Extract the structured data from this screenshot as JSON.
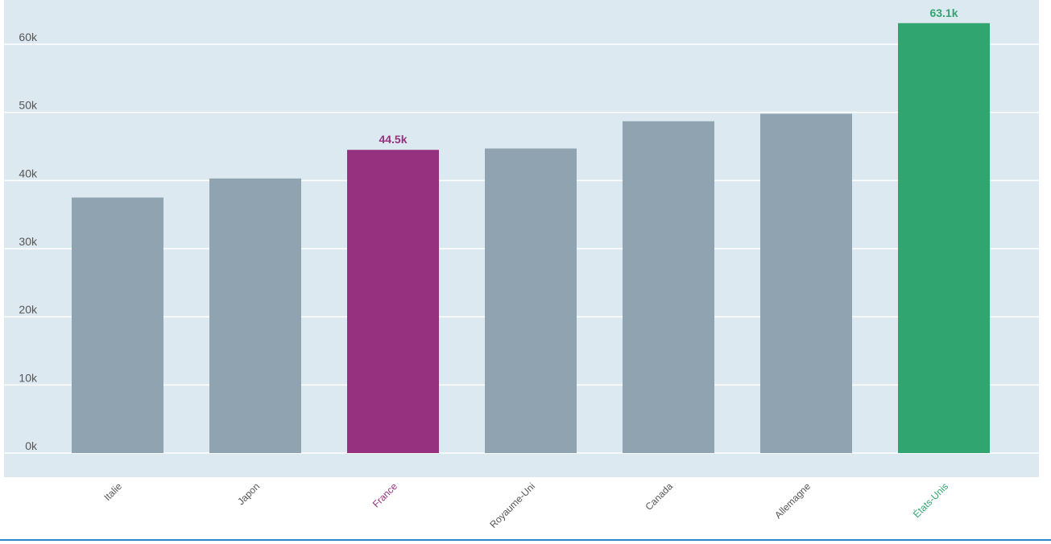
{
  "chart_data": {
    "type": "bar",
    "categories": [
      "Italie",
      "Japon",
      "France",
      "Royaume-Uni",
      "Canada",
      "Allemagne",
      "États-Unis"
    ],
    "values": [
      37.5,
      40.3,
      44.5,
      44.7,
      48.7,
      49.8,
      63.1
    ],
    "value_labels": [
      "",
      "",
      "44.5k",
      "",
      "",
      "",
      "63.1k"
    ],
    "ylim": [
      0,
      60
    ],
    "yticks": [
      0,
      10,
      20,
      30,
      40,
      50,
      60
    ],
    "ytick_labels": [
      "0k",
      "10k",
      "20k",
      "30k",
      "40k",
      "50k",
      "60k"
    ],
    "title": "",
    "xlabel": "",
    "ylabel": "",
    "grid": true,
    "colors": {
      "default": "#8fa4b0",
      "France": "#95317f",
      "États-Unis": "#31a56f",
      "plot_background": "#dde9f0",
      "gridline": "#ffffff",
      "axis_text": "#555555"
    }
  }
}
